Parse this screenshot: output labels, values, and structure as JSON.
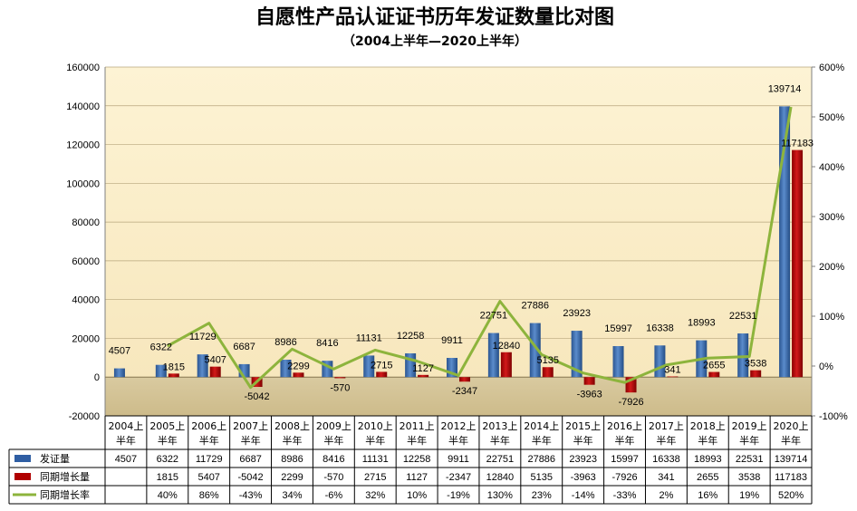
{
  "chart_data": {
    "type": "bar",
    "title": "自愿性产品认证证书历年发证数量比对图",
    "subtitle": "（2004上半年—2020上半年）",
    "categories": [
      "2004上半年",
      "2005上半年",
      "2006上半年",
      "2007上半年",
      "2008上半年",
      "2009上半年",
      "2010上半年",
      "2011上半年",
      "2012上半年",
      "2013上半年",
      "2014上半年",
      "2015上半年",
      "2016上半年",
      "2017上半年",
      "2018上半年",
      "2019上半年",
      "2020上半年"
    ],
    "category_lines": [
      [
        "2004上",
        "半年"
      ],
      [
        "2005上",
        "半年"
      ],
      [
        "2006上",
        "半年"
      ],
      [
        "2007上",
        "半年"
      ],
      [
        "2008上",
        "半年"
      ],
      [
        "2009上",
        "半年"
      ],
      [
        "2010上",
        "半年"
      ],
      [
        "2011上",
        "半年"
      ],
      [
        "2012上",
        "半年"
      ],
      [
        "2013上",
        "半年"
      ],
      [
        "2014上",
        "半年"
      ],
      [
        "2015上",
        "半年"
      ],
      [
        "2016上",
        "半年"
      ],
      [
        "2017上",
        "半年"
      ],
      [
        "2018上",
        "半年"
      ],
      [
        "2019上",
        "半年"
      ],
      [
        "2020上",
        "半年"
      ]
    ],
    "series": [
      {
        "name": "发证量",
        "kind": "bar",
        "axis": "left",
        "color": "#2f5ea3",
        "values": [
          4507,
          6322,
          11729,
          6687,
          8986,
          8416,
          11131,
          12258,
          9911,
          22751,
          27886,
          23923,
          15997,
          16338,
          18993,
          22531,
          139714
        ],
        "table_text": [
          "4507",
          "6322",
          "11729",
          "6687",
          "8986",
          "8416",
          "11131",
          "12258",
          "9911",
          "22751",
          "27886",
          "23923",
          "15997",
          "16338",
          "18993",
          "22531",
          "139714"
        ]
      },
      {
        "name": "同期增长量",
        "kind": "bar",
        "axis": "left",
        "color": "#b00000",
        "values": [
          null,
          1815,
          5407,
          -5042,
          2299,
          -570,
          2715,
          1127,
          -2347,
          12840,
          5135,
          -3963,
          -7926,
          341,
          2655,
          3538,
          117183
        ],
        "table_text": [
          "",
          "1815",
          "5407",
          "-5042",
          "2299",
          "-570",
          "2715",
          "1127",
          "-2347",
          "12840",
          "5135",
          "-3963",
          "-7926",
          "341",
          "2655",
          "3538",
          "117183"
        ]
      },
      {
        "name": "同期增长率",
        "kind": "line",
        "axis": "right",
        "color": "#8db43c",
        "values": [
          null,
          40,
          86,
          -43,
          34,
          -6,
          32,
          10,
          -19,
          130,
          23,
          -14,
          -33,
          2,
          16,
          19,
          520
        ],
        "table_text": [
          "",
          "40%",
          "86%",
          "-43%",
          "34%",
          "-6%",
          "32%",
          "10%",
          "-19%",
          "130%",
          "23%",
          "-14%",
          "-33%",
          "2%",
          "16%",
          "19%",
          "520%"
        ]
      }
    ],
    "left_axis": {
      "min": -20000,
      "max": 160000,
      "step": 20000,
      "ticks": [
        "-20000",
        "0",
        "20000",
        "40000",
        "60000",
        "80000",
        "100000",
        "120000",
        "140000",
        "160000"
      ]
    },
    "right_axis": {
      "min": -100,
      "max": 600,
      "step": 100,
      "ticks": [
        "-100%",
        "0%",
        "100%",
        "200%",
        "300%",
        "400%",
        "500%",
        "600%"
      ]
    },
    "data_table": true
  }
}
